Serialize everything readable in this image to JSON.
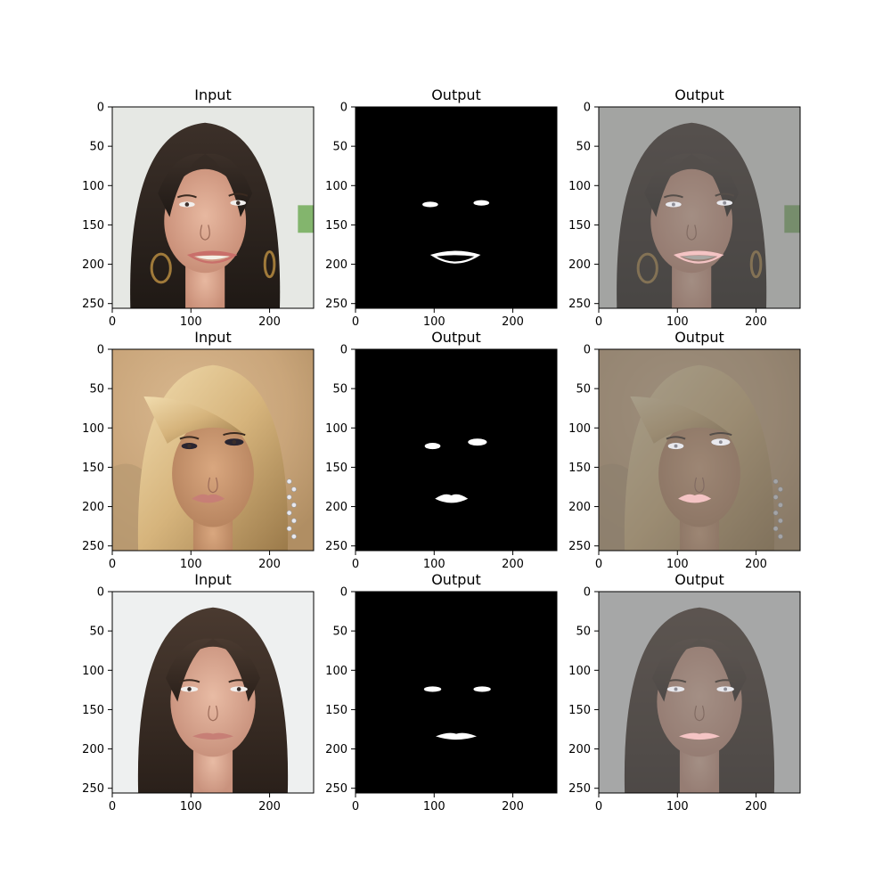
{
  "figure": {
    "image_extent": [
      0,
      256
    ],
    "x_ticks": [
      "0",
      "100",
      "200"
    ],
    "y_ticks": [
      "0",
      "50",
      "100",
      "150",
      "200",
      "250"
    ],
    "panels": [
      {
        "row": 0,
        "col": 0,
        "title": "Input",
        "kind": "photo",
        "scene": "smiling woman with long dark hair and hoop earrings, light background"
      },
      {
        "row": 0,
        "col": 1,
        "title": "Output",
        "kind": "mask"
      },
      {
        "row": 0,
        "col": 2,
        "title": "Output",
        "kind": "overlay"
      },
      {
        "row": 1,
        "col": 0,
        "title": "Input",
        "kind": "photo",
        "scene": "woman with blonde hair, dark eye makeup and sparkling earring, warm beige background"
      },
      {
        "row": 1,
        "col": 1,
        "title": "Output",
        "kind": "mask"
      },
      {
        "row": 1,
        "col": 2,
        "title": "Output",
        "kind": "overlay"
      },
      {
        "row": 2,
        "col": 0,
        "title": "Input",
        "kind": "photo",
        "scene": "woman with long dark brown hair, neutral expression, pale background"
      },
      {
        "row": 2,
        "col": 1,
        "title": "Output",
        "kind": "mask"
      },
      {
        "row": 2,
        "col": 2,
        "title": "Output",
        "kind": "overlay"
      }
    ],
    "colors": {
      "mask_background": "#000000",
      "mask_region": "#ffffff",
      "overlay_tint": "#6b6b6b",
      "lip_highlight": "#f4c4c4"
    }
  }
}
